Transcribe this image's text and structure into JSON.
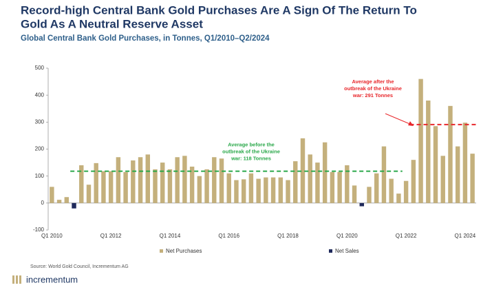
{
  "chart_data": {
    "type": "bar",
    "title": [
      "Record-high Central Bank Gold Purchases Are A Sign Of The Return To",
      "Gold As A Neutral Reserve Asset"
    ],
    "subtitle": "Global Central Bank Gold Purchases, in Tonnes, Q1/2010–Q2/2024",
    "categories": [
      "Q1 2010",
      null,
      null,
      null,
      null,
      null,
      null,
      null,
      "Q1 2012",
      null,
      null,
      null,
      null,
      null,
      null,
      null,
      "Q1 2014",
      null,
      null,
      null,
      null,
      null,
      null,
      null,
      "Q1 2016",
      null,
      null,
      null,
      null,
      null,
      null,
      null,
      "Q1 2018",
      null,
      null,
      null,
      null,
      null,
      null,
      null,
      "Q1 2020",
      null,
      null,
      null,
      null,
      null,
      null,
      null,
      "Q1 2022",
      null,
      null,
      null,
      null,
      null,
      null,
      null,
      "Q1 2024",
      null
    ],
    "series": [
      {
        "name": "Net Purchases",
        "color": "#c4b07c",
        "values": [
          60,
          12,
          22,
          null,
          140,
          68,
          148,
          118,
          118,
          170,
          115,
          158,
          170,
          180,
          125,
          150,
          125,
          170,
          175,
          135,
          100,
          125,
          170,
          165,
          110,
          85,
          88,
          110,
          90,
          95,
          95,
          95,
          85,
          155,
          240,
          180,
          150,
          225,
          115,
          115,
          140,
          65,
          null,
          60,
          110,
          210,
          90,
          35,
          82,
          160,
          460,
          380,
          285,
          175,
          360,
          210,
          298,
          183
        ]
      },
      {
        "name": "Net Sales",
        "color": "#1f2a5c",
        "values": [
          null,
          null,
          null,
          -20,
          null,
          null,
          null,
          null,
          null,
          null,
          null,
          null,
          null,
          null,
          null,
          null,
          null,
          null,
          null,
          null,
          null,
          null,
          null,
          null,
          null,
          null,
          null,
          null,
          null,
          null,
          null,
          null,
          null,
          null,
          null,
          null,
          null,
          null,
          null,
          null,
          null,
          null,
          -12,
          null,
          null,
          null,
          null,
          null,
          null,
          null,
          null,
          null,
          null,
          null,
          null,
          null,
          null,
          null
        ]
      }
    ],
    "ylim": [
      -100,
      500
    ],
    "yticks": [
      -100,
      0,
      100,
      200,
      300,
      400,
      500
    ],
    "reference_lines": [
      {
        "value": 118,
        "color": "#2aa84a",
        "label": [
          "Average before the",
          "outbreak of the Ukraine",
          "war: 118 Tonnes"
        ]
      },
      {
        "value": 291,
        "color": "#e8262a",
        "label": [
          "Average after the",
          "outbreak of the Ukraine",
          "war: 291 Tonnes"
        ]
      }
    ],
    "source": "Source: World Gold Council, Incrementum AG",
    "brand": "incrementum"
  }
}
